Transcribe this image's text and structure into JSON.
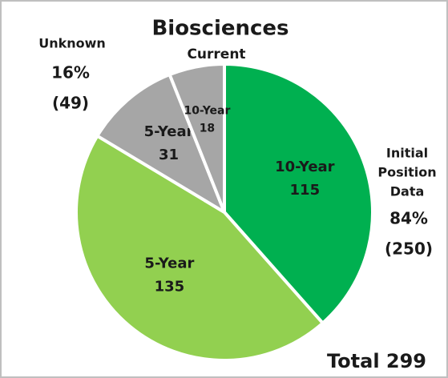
{
  "chart_data": {
    "type": "pie",
    "title": "Biosciences",
    "subtitle": "Current",
    "categories": [
      "10-Year",
      "5-Year",
      "5-Year",
      "10-Year"
    ],
    "values": [
      115,
      135,
      31,
      18
    ],
    "colors": [
      "#00b050",
      "#92d050",
      "#a6a6a6",
      "#a6a6a6"
    ],
    "annotations": [
      "Unknown",
      "16%",
      "(49)",
      "Initial",
      "Position",
      "Data",
      "84%",
      "(250)",
      "Total 299"
    ]
  }
}
